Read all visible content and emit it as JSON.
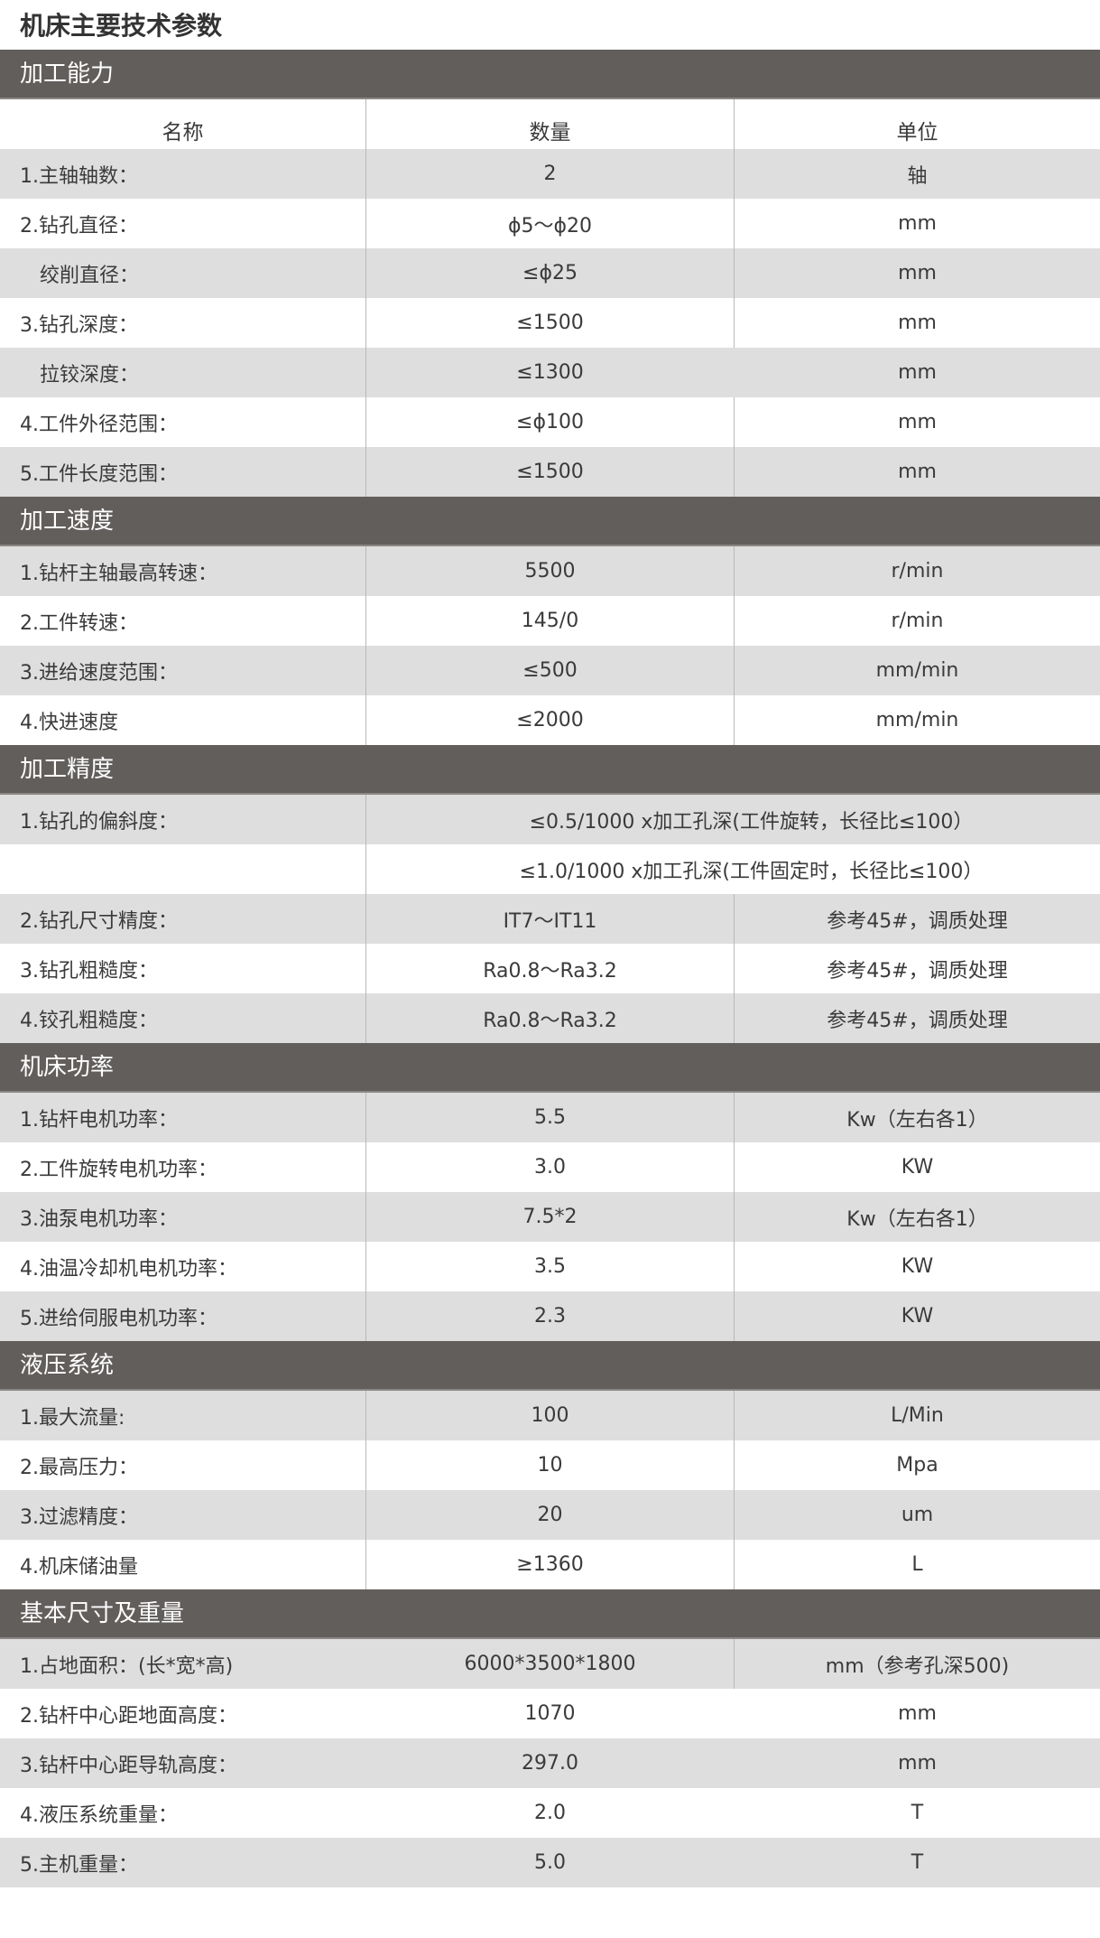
{
  "title": "机床主要技术参数",
  "columns": {
    "name": "名称",
    "quantity": "数量",
    "unit": "单位"
  },
  "colors": {
    "section_header_bg": "#625e5c",
    "stripe_gray": "#dedede",
    "text": "#3a3a3a"
  },
  "sections": [
    {
      "title": "加工能力",
      "rows": [
        {
          "name": "1.主轴轴数：",
          "value": "2",
          "unit": "轴"
        },
        {
          "name": "2.钻孔直径：",
          "value": "ϕ5～ϕ20",
          "unit": "mm"
        },
        {
          "name": "绞削直径：",
          "value": "≤ϕ25",
          "unit": "mm",
          "indent": true
        },
        {
          "name": "3.钻孔深度：",
          "value": "≤1500",
          "unit": "mm"
        },
        {
          "name": "拉铰深度：",
          "value": "≤1300",
          "unit": "mm",
          "indent": true,
          "no_right_line": true
        },
        {
          "name": "4.工件外径范围：",
          "value": "≤ϕ100",
          "unit": "mm"
        },
        {
          "name": "5.工件长度范围：",
          "value": "≤1500",
          "unit": "mm"
        }
      ]
    },
    {
      "title": "加工速度",
      "rows": [
        {
          "name": "1.钻杆主轴最高转速：",
          "value": "5500",
          "unit": "r/min"
        },
        {
          "name": "2.工件转速：",
          "value": "145/0",
          "unit": "r/min"
        },
        {
          "name": "3.进给速度范围：",
          "value": "≤500",
          "unit": "mm/min"
        },
        {
          "name": "4.快进速度",
          "value": "≤2000",
          "unit": "mm/min"
        }
      ]
    },
    {
      "title": "加工精度",
      "rows": [
        {
          "name": "1.钻孔的偏斜度：",
          "value": "≤0.5/1000 x加工孔深(工件旋转，长径比≤100）",
          "span": true
        },
        {
          "name": "",
          "value": "≤1.0/1000 x加工孔深(工件固定时，长径比≤100）",
          "span": true
        },
        {
          "name": "2.钻孔尺寸精度：",
          "value": "IT7～IT11",
          "unit": "参考45#，调质处理"
        },
        {
          "name": "3.钻孔粗糙度：",
          "value": "Ra0.8～Ra3.2",
          "unit": "参考45#，调质处理"
        },
        {
          "name": "4.铰孔粗糙度：",
          "value": "Ra0.8～Ra3.2",
          "unit": "参考45#，调质处理"
        }
      ]
    },
    {
      "title": "机床功率",
      "rows": [
        {
          "name": "1.钻杆电机功率：",
          "value": "5.5",
          "unit": "Kw（左右各1）"
        },
        {
          "name": "2.工件旋转电机功率：",
          "value": "3.0",
          "unit": "KW"
        },
        {
          "name": "3.油泵电机功率：",
          "value": "7.5*2",
          "unit": "Kw（左右各1）"
        },
        {
          "name": "4.油温冷却机电机功率：",
          "value": "3.5",
          "unit": "KW"
        },
        {
          "name": "5.进给伺服电机功率：",
          "value": "2.3",
          "unit": "KW"
        }
      ]
    },
    {
      "title": "液压系统",
      "rows": [
        {
          "name": "1.最大流量:",
          "value": "100",
          "unit": "L/Min"
        },
        {
          "name": "2.最高压力：",
          "value": "10",
          "unit": "Mpa"
        },
        {
          "name": "3.过滤精度：",
          "value": "20",
          "unit": "um"
        },
        {
          "name": "4.机床储油量",
          "value": "≥1360",
          "unit": "L"
        }
      ]
    },
    {
      "title": "基本尺寸及重量",
      "rows": [
        {
          "name": "1.占地面积：(长*宽*高)",
          "value": "6000*3500*1800",
          "unit": "mm（参考孔深500)",
          "no_left_line": true
        },
        {
          "name": "2.钻杆中心距地面高度：",
          "value": "1070",
          "unit": "mm",
          "no_left_line": true,
          "no_right_line": true
        },
        {
          "name": "3.钻杆中心距导轨高度：",
          "value": "297.0",
          "unit": "mm",
          "no_left_line": true,
          "no_right_line": true
        },
        {
          "name": "4.液压系统重量：",
          "value": "2.0",
          "unit": "T",
          "no_left_line": true,
          "no_right_line": true
        },
        {
          "name": "5.主机重量：",
          "value": "5.0",
          "unit": "T",
          "no_left_line": true,
          "no_right_line": true
        }
      ]
    }
  ]
}
